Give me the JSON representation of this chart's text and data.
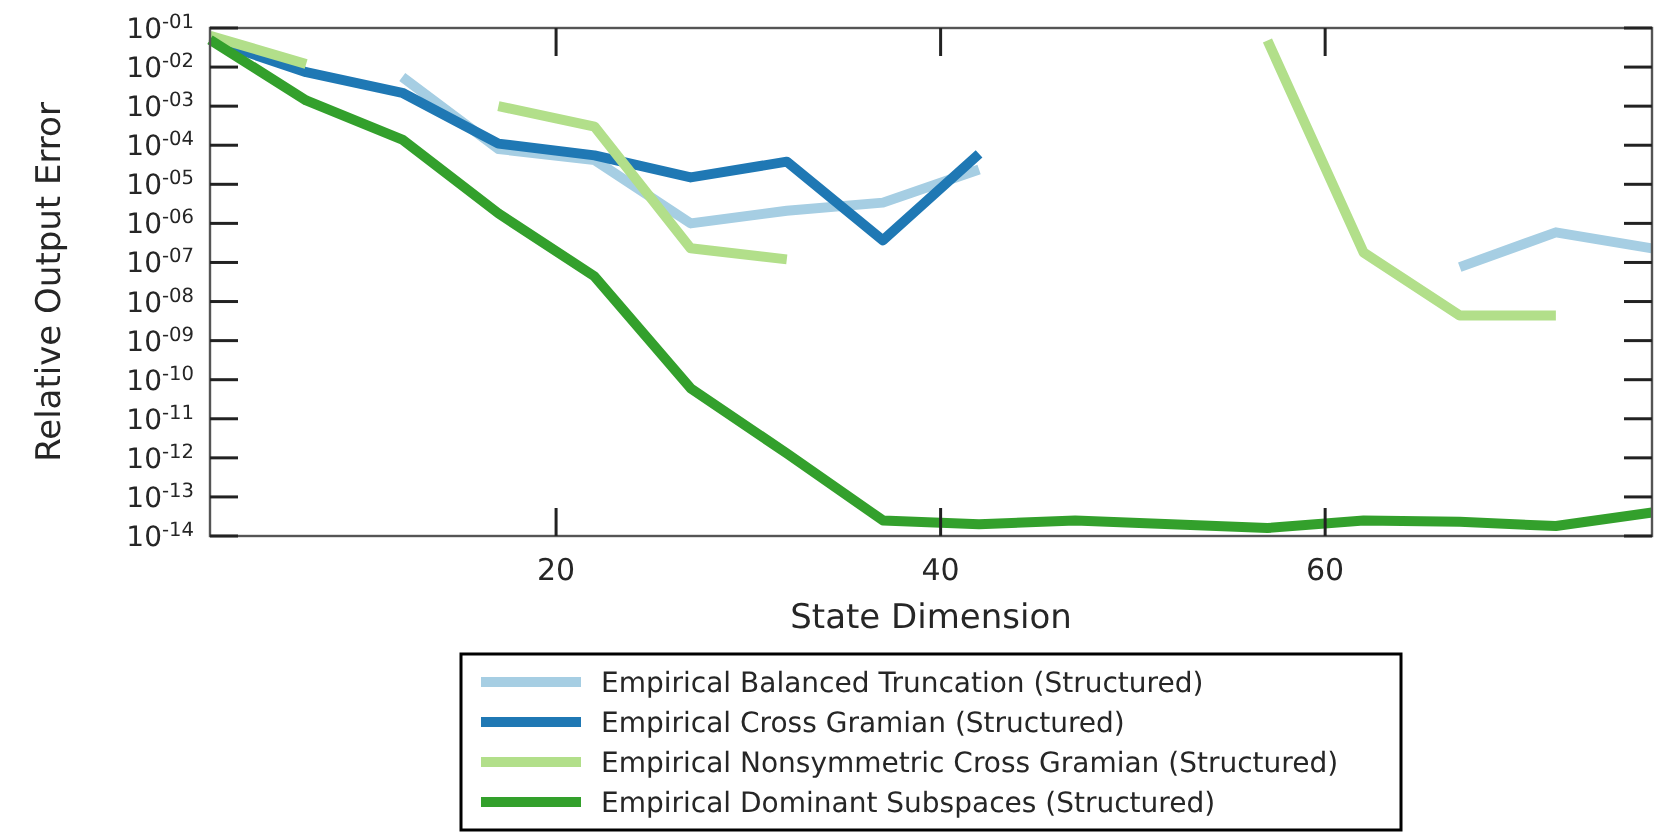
{
  "chart_data": {
    "type": "line",
    "xlabel": "State Dimension",
    "ylabel": "Relative Output Error",
    "x": [
      2,
      7,
      12,
      17,
      22,
      27,
      32,
      37,
      42,
      47,
      52,
      57,
      62,
      67,
      72,
      77
    ],
    "series": [
      {
        "name": "Empirical Balanced Truncation (Structured)",
        "color": "#a6cee3",
        "values": [
          null,
          null,
          0.0056,
          8e-05,
          4.2e-05,
          1e-06,
          2.1e-06,
          3.4e-06,
          2.4e-05,
          null,
          null,
          null,
          null,
          7.6e-08,
          5.9e-07,
          2.3e-07
        ]
      },
      {
        "name": "Empirical Cross Gramian (Structured)",
        "color": "#1f78b4",
        "values": [
          0.05,
          0.0074,
          0.0022,
          0.00011,
          5.5e-05,
          1.5e-05,
          3.8e-05,
          3.7e-07,
          6e-05,
          null,
          null,
          null,
          null,
          null,
          null,
          null
        ]
      },
      {
        "name": "Empirical Nonsymmetric Cross Gramian (Structured)",
        "color": "#b2df8a",
        "values": [
          0.063,
          0.012,
          null,
          0.001,
          0.0003,
          2.3e-07,
          1.2e-07,
          null,
          null,
          null,
          null,
          0.048,
          1.8e-07,
          4.4e-09,
          4.4e-09,
          null
        ]
      },
      {
        "name": "Empirical Dominant Subspaces (Structured)",
        "color": "#33a02c",
        "values": [
          0.05,
          0.0014,
          0.00014,
          1.8e-06,
          4.4e-08,
          6e-11,
          1.3e-12,
          2.5e-14,
          2e-14,
          2.5e-14,
          2e-14,
          1.6e-14,
          2.5e-14,
          2.3e-14,
          1.8e-14,
          4e-14
        ]
      }
    ],
    "xlim": [
      2,
      77
    ],
    "xticks": [
      20,
      40,
      60
    ],
    "ylim": [
      1e-14,
      0.1
    ],
    "log": true,
    "yticks": [
      {
        "value": 0.1,
        "label": "10$^{-01}$"
      },
      {
        "value": 0.01,
        "label": "10$^{-02}$"
      },
      {
        "value": 0.001,
        "label": "10$^{-03}$"
      },
      {
        "value": 0.0001,
        "label": "10$^{-04}$"
      },
      {
        "value": 1e-05,
        "label": "10$^{-05}$"
      },
      {
        "value": 1e-06,
        "label": "10$^{-06}$"
      },
      {
        "value": 1e-07,
        "label": "10$^{-07}$"
      },
      {
        "value": 1e-08,
        "label": "10$^{-08}$"
      },
      {
        "value": 1e-09,
        "label": "10$^{-09}$"
      },
      {
        "value": 1e-10,
        "label": "10$^{-10}$"
      },
      {
        "value": 1e-11,
        "label": "10$^{-11}$"
      },
      {
        "value": 1e-12,
        "label": "10$^{-12}$"
      },
      {
        "value": 1e-13,
        "label": "10$^{-13}$"
      },
      {
        "value": 1e-14,
        "label": "10$^{-14}$"
      }
    ],
    "legend": "bottom",
    "grid": false,
    "line_style": "solid",
    "marker": "none"
  }
}
